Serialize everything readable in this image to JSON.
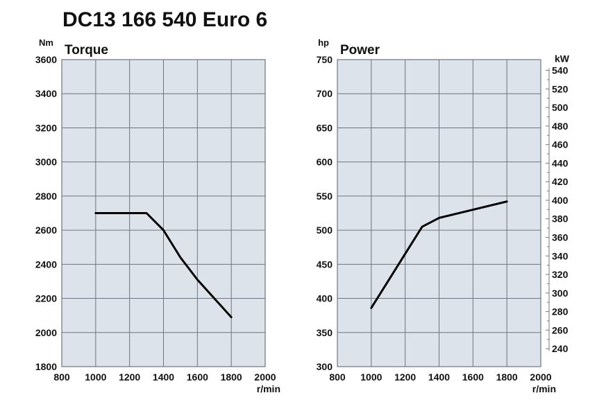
{
  "title": "DC13 166 540 Euro 6",
  "colors": {
    "plot_background": "#dde3ea",
    "grid": "#6b7480",
    "line": "#000000"
  },
  "chart_data": [
    {
      "type": "line",
      "title": "Torque",
      "ylabel": "Nm",
      "xlabel": "r/min",
      "xlim": [
        800,
        2000
      ],
      "ylim": [
        1800,
        3600
      ],
      "x_ticks": [
        800,
        1000,
        1200,
        1400,
        1600,
        1800,
        2000
      ],
      "y_ticks": [
        1800,
        2000,
        2200,
        2400,
        2600,
        2800,
        3000,
        3200,
        3400,
        3600
      ],
      "grid": true,
      "series": [
        {
          "x": [
            1000,
            1300,
            1400,
            1500,
            1600,
            1800
          ],
          "y": [
            2700,
            2700,
            2600,
            2440,
            2310,
            2090
          ]
        }
      ]
    },
    {
      "type": "line",
      "title": "Power",
      "ylabel": "hp",
      "ylabel_right": "kW",
      "xlabel": "r/min",
      "xlim": [
        800,
        2000
      ],
      "ylim": [
        300,
        750
      ],
      "x_ticks": [
        800,
        1000,
        1200,
        1400,
        1600,
        1800,
        2000
      ],
      "y_ticks": [
        300,
        350,
        400,
        450,
        500,
        550,
        600,
        650,
        700,
        750
      ],
      "y2_ticks": [
        240,
        260,
        280,
        300,
        320,
        340,
        360,
        380,
        400,
        420,
        440,
        460,
        480,
        500,
        520,
        540
      ],
      "grid": true,
      "series": [
        {
          "x": [
            1000,
            1300,
            1400,
            1600,
            1800
          ],
          "y": [
            386,
            505,
            518,
            530,
            542
          ]
        }
      ]
    }
  ]
}
